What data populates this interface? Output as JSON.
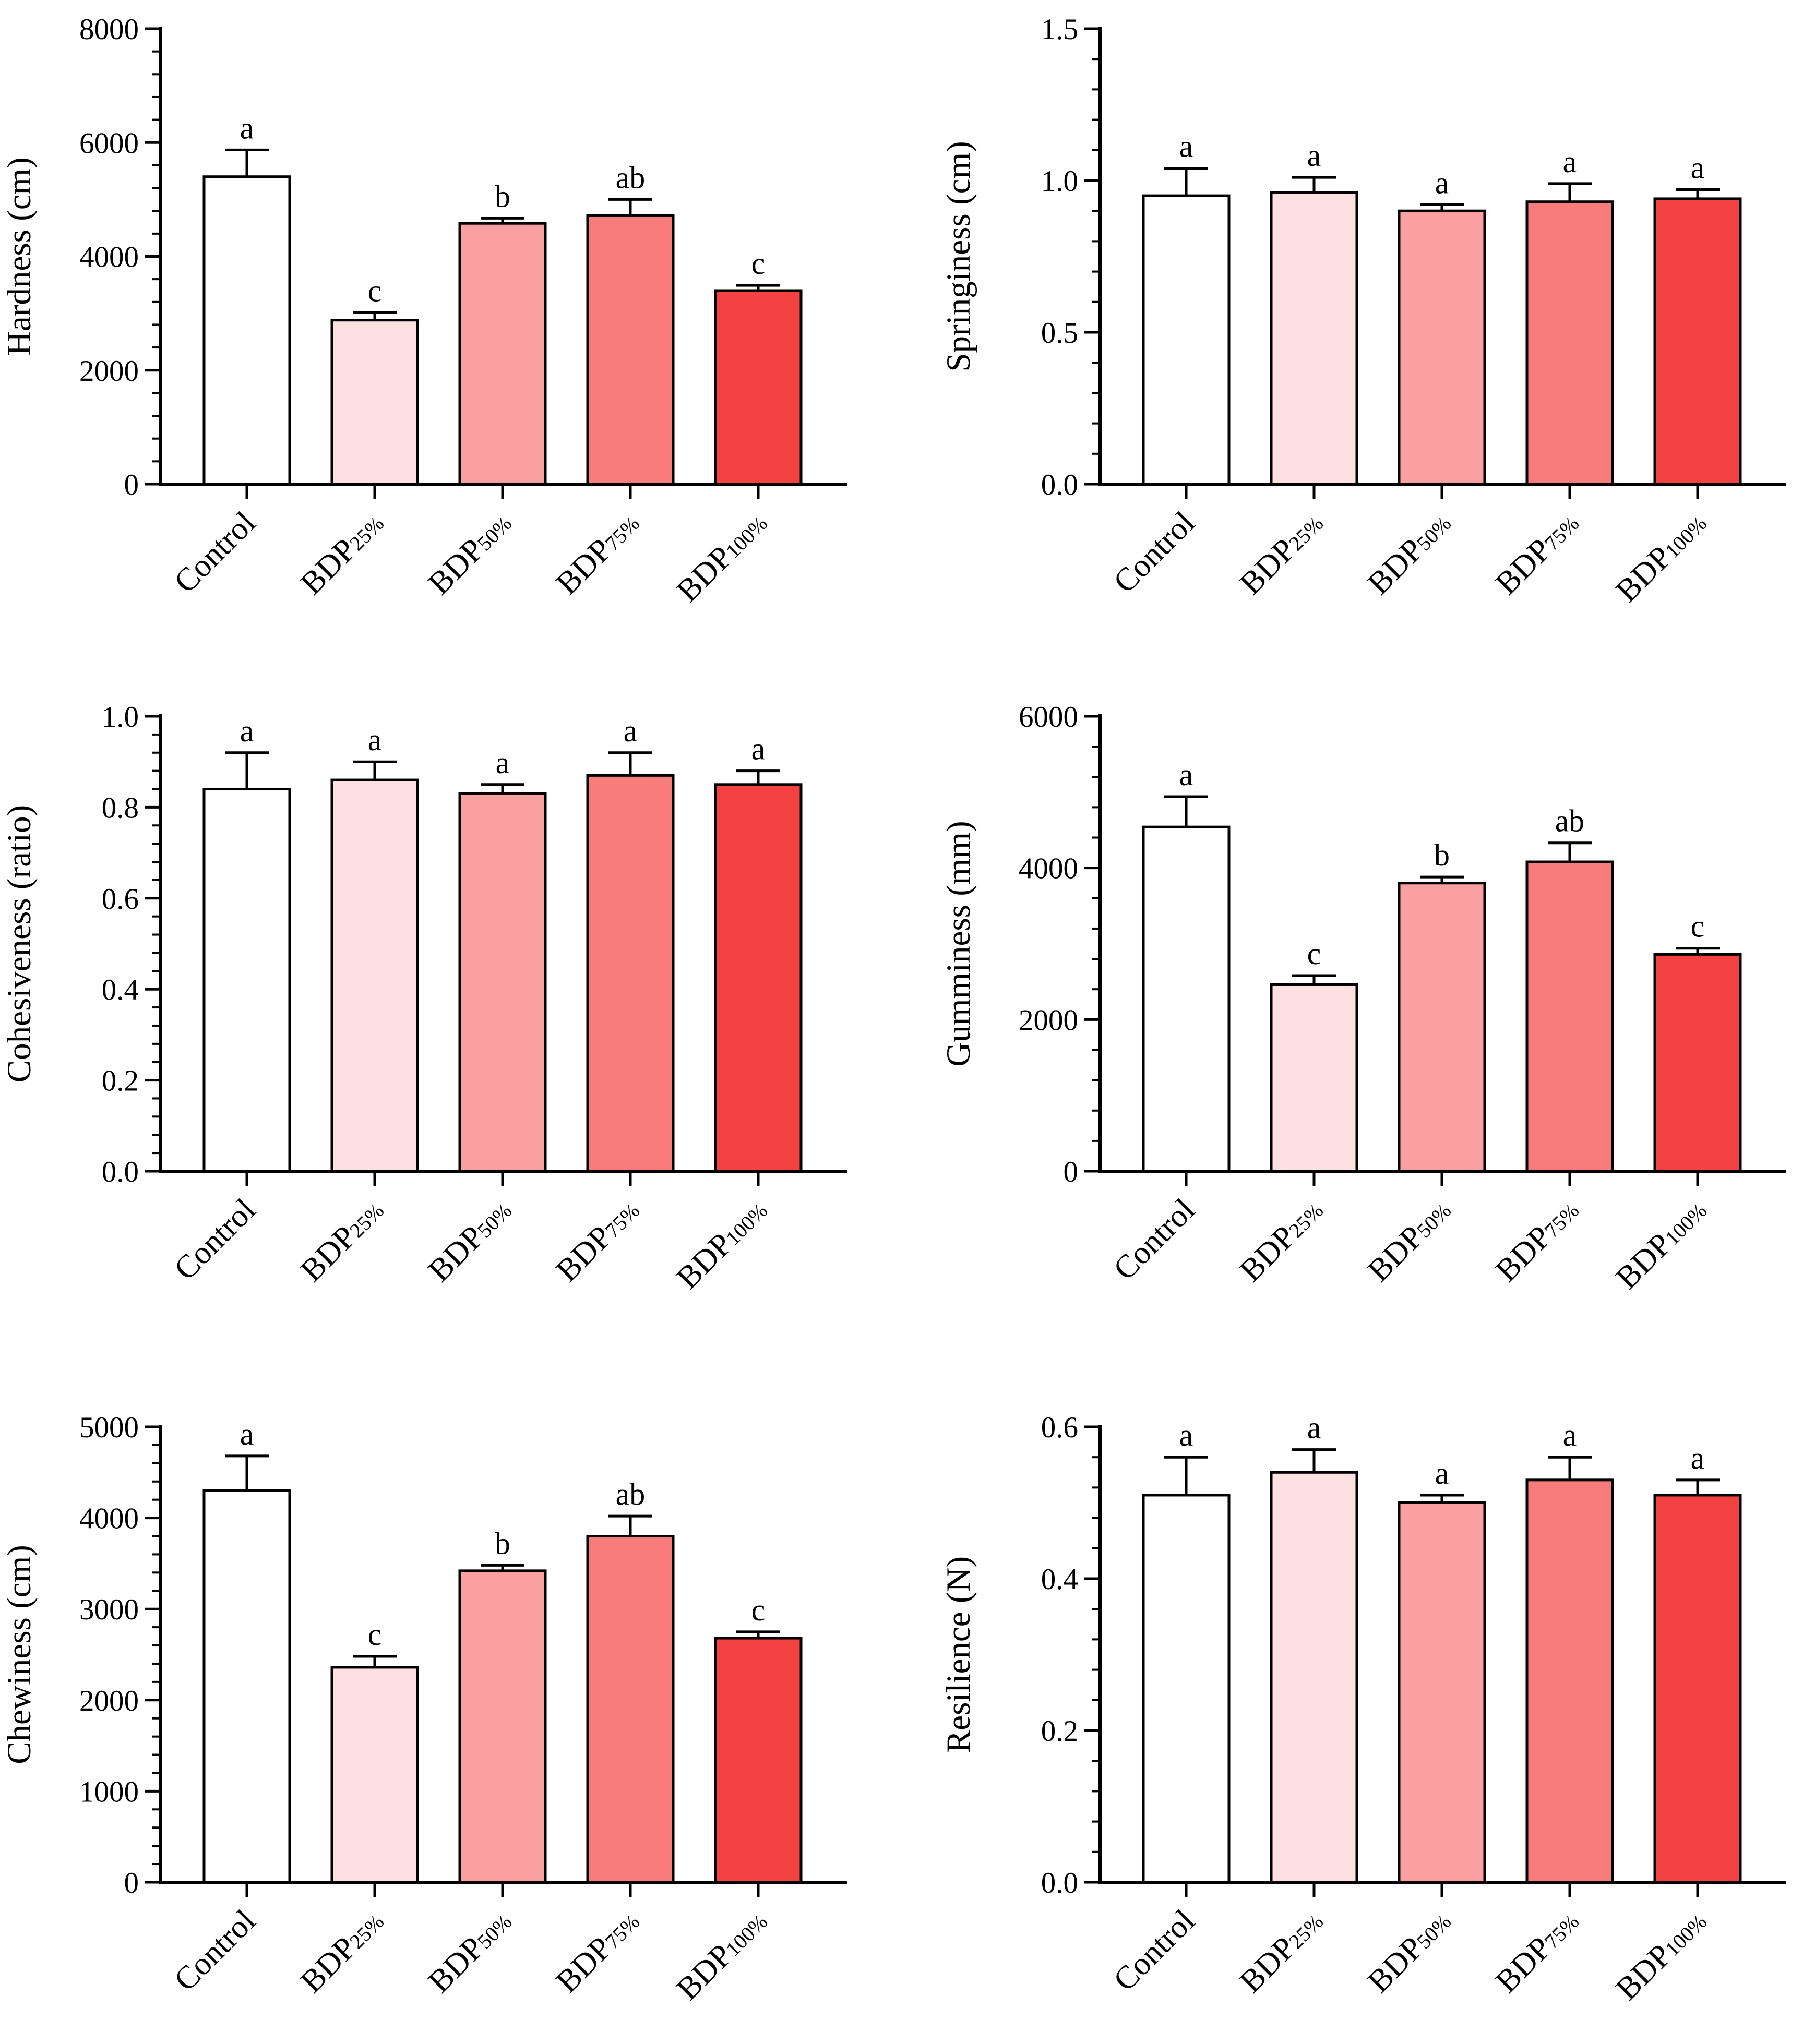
{
  "chart_data": [
    {
      "type": "bar",
      "ylabel": "Hardness (cm)",
      "categories": [
        "Control",
        "BDP25%",
        "BDP50%",
        "BDP75%",
        "BDP100%"
      ],
      "category_parts": [
        [
          "Control",
          ""
        ],
        [
          "BDP",
          "25%"
        ],
        [
          "BDP",
          "50%"
        ],
        [
          "BDP",
          "75%"
        ],
        [
          "BDP",
          "100%"
        ]
      ],
      "values": [
        5400,
        2880,
        4580,
        4720,
        3400
      ],
      "errors": [
        470,
        130,
        90,
        280,
        90
      ],
      "significance": [
        "a",
        "c",
        "b",
        "ab",
        "c"
      ],
      "ylim": [
        0,
        8000
      ],
      "yticks": [
        0,
        2000,
        4000,
        6000,
        8000
      ],
      "ytick_labels": [
        "0",
        "2000",
        "4000",
        "6000",
        "8000"
      ]
    },
    {
      "type": "bar",
      "ylabel": "Springiness (cm)",
      "categories": [
        "Control",
        "BDP25%",
        "BDP50%",
        "BDP75%",
        "BDP100%"
      ],
      "category_parts": [
        [
          "Control",
          ""
        ],
        [
          "BDP",
          "25%"
        ],
        [
          "BDP",
          "50%"
        ],
        [
          "BDP",
          "75%"
        ],
        [
          "BDP",
          "100%"
        ]
      ],
      "values": [
        0.95,
        0.96,
        0.9,
        0.93,
        0.94
      ],
      "errors": [
        0.09,
        0.05,
        0.02,
        0.06,
        0.03
      ],
      "significance": [
        "a",
        "a",
        "a",
        "a",
        "a"
      ],
      "ylim": [
        0,
        1.5
      ],
      "yticks": [
        0,
        0.5,
        1.0,
        1.5
      ],
      "ytick_labels": [
        "0.0",
        "0.5",
        "1.0",
        "1.5"
      ]
    },
    {
      "type": "bar",
      "ylabel": "Cohesiveness (ratio)",
      "categories": [
        "Control",
        "BDP25%",
        "BDP50%",
        "BDP75%",
        "BDP100%"
      ],
      "category_parts": [
        [
          "Control",
          ""
        ],
        [
          "BDP",
          "25%"
        ],
        [
          "BDP",
          "50%"
        ],
        [
          "BDP",
          "75%"
        ],
        [
          "BDP",
          "100%"
        ]
      ],
      "values": [
        0.84,
        0.86,
        0.83,
        0.87,
        0.85
      ],
      "errors": [
        0.08,
        0.04,
        0.02,
        0.05,
        0.03
      ],
      "significance": [
        "a",
        "a",
        "a",
        "a",
        "a"
      ],
      "ylim": [
        0,
        1.0
      ],
      "yticks": [
        0,
        0.2,
        0.4,
        0.6,
        0.8,
        1.0
      ],
      "ytick_labels": [
        "0.0",
        "0.2",
        "0.4",
        "0.6",
        "0.8",
        "1.0"
      ]
    },
    {
      "type": "bar",
      "ylabel": "Gumminess (mm)",
      "categories": [
        "Control",
        "BDP25%",
        "BDP50%",
        "BDP75%",
        "BDP100%"
      ],
      "category_parts": [
        [
          "Control",
          ""
        ],
        [
          "BDP",
          "25%"
        ],
        [
          "BDP",
          "50%"
        ],
        [
          "BDP",
          "75%"
        ],
        [
          "BDP",
          "100%"
        ]
      ],
      "values": [
        4540,
        2460,
        3800,
        4080,
        2860
      ],
      "errors": [
        400,
        120,
        80,
        250,
        80
      ],
      "significance": [
        "a",
        "c",
        "b",
        "ab",
        "c"
      ],
      "ylim": [
        0,
        6000
      ],
      "yticks": [
        0,
        2000,
        4000,
        6000
      ],
      "ytick_labels": [
        "0",
        "2000",
        "4000",
        "6000"
      ]
    },
    {
      "type": "bar",
      "ylabel": "Chewiness (cm)",
      "categories": [
        "Control",
        "BDP25%",
        "BDP50%",
        "BDP75%",
        "BDP100%"
      ],
      "category_parts": [
        [
          "Control",
          ""
        ],
        [
          "BDP",
          "25%"
        ],
        [
          "BDP",
          "50%"
        ],
        [
          "BDP",
          "75%"
        ],
        [
          "BDP",
          "100%"
        ]
      ],
      "values": [
        4300,
        2360,
        3420,
        3800,
        2680
      ],
      "errors": [
        380,
        120,
        60,
        220,
        70
      ],
      "significance": [
        "a",
        "c",
        "b",
        "ab",
        "c"
      ],
      "ylim": [
        0,
        5000
      ],
      "yticks": [
        0,
        1000,
        2000,
        3000,
        4000,
        5000
      ],
      "ytick_labels": [
        "0",
        "1000",
        "2000",
        "3000",
        "4000",
        "5000"
      ]
    },
    {
      "type": "bar",
      "ylabel": "Resilience (N)",
      "categories": [
        "Control",
        "BDP25%",
        "BDP50%",
        "BDP75%",
        "BDP100%"
      ],
      "category_parts": [
        [
          "Control",
          ""
        ],
        [
          "BDP",
          "25%"
        ],
        [
          "BDP",
          "50%"
        ],
        [
          "BDP",
          "75%"
        ],
        [
          "BDP",
          "100%"
        ]
      ],
      "values": [
        0.51,
        0.54,
        0.5,
        0.53,
        0.51
      ],
      "errors": [
        0.05,
        0.03,
        0.01,
        0.03,
        0.02
      ],
      "significance": [
        "a",
        "a",
        "a",
        "a",
        "a"
      ],
      "ylim": [
        0,
        0.6
      ],
      "yticks": [
        0,
        0.2,
        0.4,
        0.6
      ],
      "ytick_labels": [
        "0.0",
        "0.2",
        "0.4",
        "0.6"
      ]
    }
  ],
  "colors": {
    "bar_fills": [
      "#ffffff",
      "#fde0e1",
      "#fba0a0",
      "#f97c7c",
      "#f44242"
    ],
    "stroke": "#000000"
  }
}
